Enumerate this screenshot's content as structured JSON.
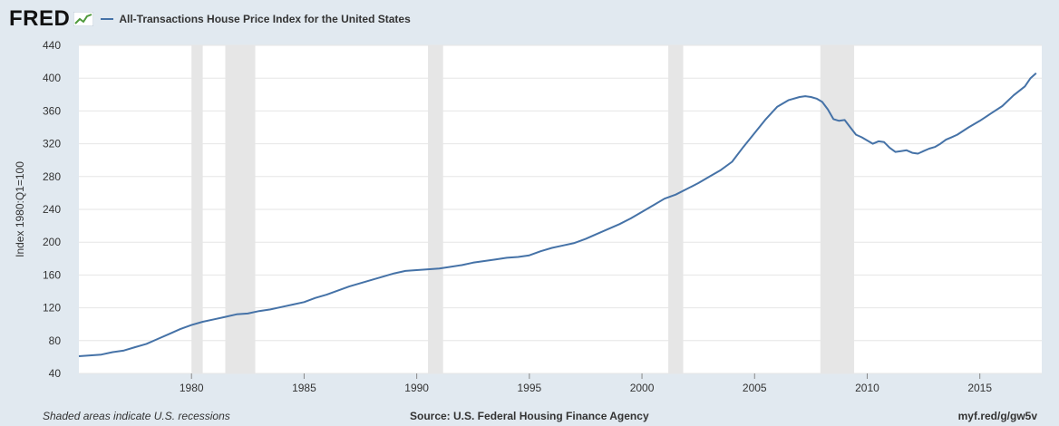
{
  "header": {
    "logo_text": "FRED",
    "logo_icon": "fred-chart-icon",
    "legend_label": "All-Transactions House Price Index for the United States"
  },
  "footer": {
    "recession_note": "Shaded areas indicate U.S. recessions",
    "source": "Source: U.S. Federal Housing Finance Agency",
    "link": "myf.red/g/gw5v"
  },
  "colors": {
    "background": "#e1e9f0",
    "plot_background": "#ffffff",
    "series": "#4572a7",
    "recession": "#e6e6e6",
    "grid": "#e6e6e6"
  },
  "chart_data": {
    "type": "line",
    "title": "",
    "xlabel": "",
    "ylabel": "Index 1980:Q1=100",
    "xlim": [
      1975.0,
      2017.75
    ],
    "ylim": [
      40,
      440
    ],
    "y_ticks": [
      40,
      80,
      120,
      160,
      200,
      240,
      280,
      320,
      360,
      400,
      440
    ],
    "x_ticks": [
      1980,
      1985,
      1990,
      1995,
      2000,
      2005,
      2010,
      2015
    ],
    "grid": true,
    "legend_placement": "top-left",
    "recessions": [
      [
        1980.0,
        1980.5
      ],
      [
        1981.5,
        1982.83
      ],
      [
        1990.5,
        1991.17
      ],
      [
        2001.17,
        2001.83
      ],
      [
        2007.92,
        2009.42
      ]
    ],
    "series": [
      {
        "name": "All-Transactions House Price Index for the United States",
        "x": [
          1975.0,
          1975.5,
          1976.0,
          1976.5,
          1977.0,
          1977.5,
          1978.0,
          1978.5,
          1979.0,
          1979.5,
          1980.0,
          1980.5,
          1981.0,
          1981.5,
          1982.0,
          1982.5,
          1983.0,
          1983.5,
          1984.0,
          1984.5,
          1985.0,
          1985.5,
          1986.0,
          1986.5,
          1987.0,
          1987.5,
          1988.0,
          1988.5,
          1989.0,
          1989.5,
          1990.0,
          1990.5,
          1991.0,
          1991.5,
          1992.0,
          1992.5,
          1993.0,
          1993.5,
          1994.0,
          1994.5,
          1995.0,
          1995.5,
          1996.0,
          1996.5,
          1997.0,
          1997.5,
          1998.0,
          1998.5,
          1999.0,
          1999.5,
          2000.0,
          2000.5,
          2001.0,
          2001.5,
          2002.0,
          2002.5,
          2003.0,
          2003.5,
          2004.0,
          2004.5,
          2005.0,
          2005.5,
          2006.0,
          2006.5,
          2007.0,
          2007.25,
          2007.5,
          2007.75,
          2008.0,
          2008.25,
          2008.5,
          2008.75,
          2009.0,
          2009.25,
          2009.5,
          2009.75,
          2010.0,
          2010.25,
          2010.5,
          2010.75,
          2011.0,
          2011.25,
          2011.5,
          2011.75,
          2012.0,
          2012.25,
          2012.5,
          2012.75,
          2013.0,
          2013.25,
          2013.5,
          2013.75,
          2014.0,
          2014.5,
          2015.0,
          2015.5,
          2016.0,
          2016.5,
          2017.0,
          2017.25,
          2017.5
        ],
        "values": [
          61,
          62,
          63,
          66,
          68,
          72,
          76,
          82,
          88,
          94,
          99,
          103,
          106,
          109,
          112,
          113,
          116,
          118,
          121,
          124,
          127,
          132,
          136,
          141,
          146,
          150,
          154,
          158,
          162,
          165,
          166,
          167,
          168,
          170,
          172,
          175,
          177,
          179,
          181,
          182,
          184,
          189,
          193,
          196,
          199,
          204,
          210,
          216,
          222,
          229,
          237,
          245,
          253,
          258,
          265,
          272,
          280,
          288,
          298,
          316,
          333,
          350,
          365,
          373,
          377,
          378,
          377,
          375,
          371,
          362,
          350,
          348,
          349,
          340,
          331,
          328,
          324,
          320,
          323,
          322,
          315,
          310,
          311,
          312,
          309,
          308,
          311,
          314,
          316,
          320,
          325,
          328,
          331,
          340,
          348,
          357,
          366,
          379,
          390,
          400,
          406
        ]
      }
    ]
  }
}
